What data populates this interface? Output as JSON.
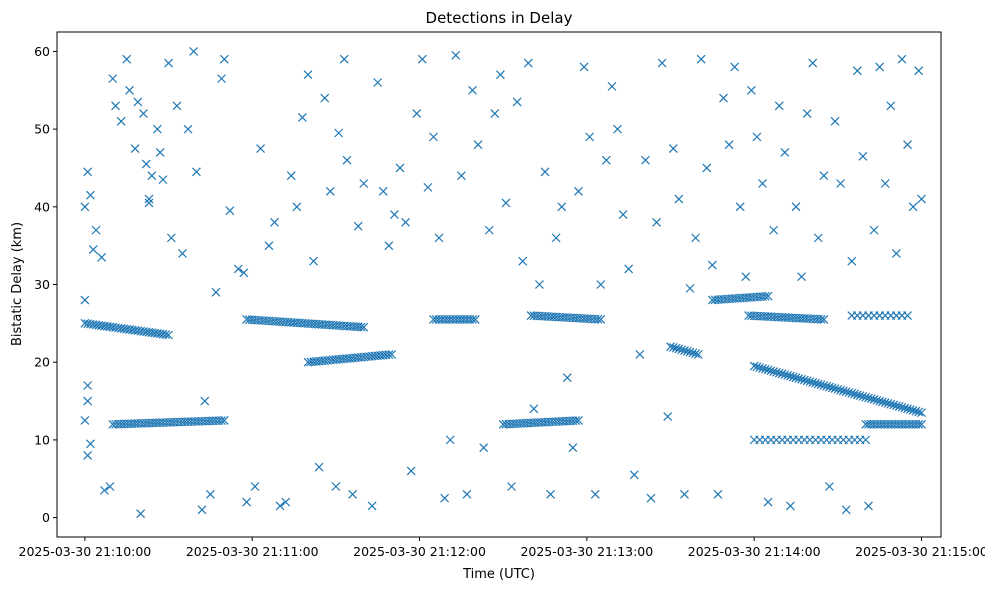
{
  "chart_data": {
    "type": "scatter",
    "title": "Detections in Delay",
    "xlabel": "Time (UTC)",
    "ylabel": "Bistatic Delay (km)",
    "xlim": [
      "2025-03-30 21:09:50",
      "2025-03-30 21:15:07"
    ],
    "ylim": [
      -2.5,
      62.5
    ],
    "x_ticks": [
      "2025-03-30 21:10:00",
      "2025-03-30 21:11:00",
      "2025-03-30 21:12:00",
      "2025-03-30 21:13:00",
      "2025-03-30 21:14:00",
      "2025-03-30 21:15:00"
    ],
    "y_ticks": [
      0,
      10,
      20,
      30,
      40,
      50,
      60
    ],
    "grid": false,
    "legend": "none",
    "marker": "x",
    "marker_color": "#1f77b4",
    "series_note_free": true,
    "series": [
      {
        "points": [
          [
            "2025-03-30 21:10:00",
            40
          ],
          [
            "2025-03-30 21:10:01",
            44.5
          ],
          [
            "2025-03-30 21:10:02",
            41.5
          ],
          [
            "2025-03-30 21:10:03",
            34.5
          ],
          [
            "2025-03-30 21:10:04",
            37
          ],
          [
            "2025-03-30 21:10:00",
            28
          ],
          [
            "2025-03-30 21:10:01",
            17
          ],
          [
            "2025-03-30 21:10:01",
            15
          ],
          [
            "2025-03-30 21:10:00",
            12.5
          ],
          [
            "2025-03-30 21:10:01",
            8
          ],
          [
            "2025-03-30 21:10:02",
            9.5
          ],
          [
            "2025-03-30 21:10:06",
            33.5
          ],
          [
            "2025-03-30 21:10:07",
            3.5
          ],
          [
            "2025-03-30 21:10:09",
            4
          ],
          [
            "2025-03-30 21:10:10",
            56.5
          ],
          [
            "2025-03-30 21:10:11",
            53
          ],
          [
            "2025-03-30 21:10:13",
            51
          ],
          [
            "2025-03-30 21:10:15",
            59
          ],
          [
            "2025-03-30 21:10:16",
            55
          ],
          [
            "2025-03-30 21:10:18",
            47.5
          ],
          [
            "2025-03-30 21:10:19",
            53.5
          ],
          [
            "2025-03-30 21:10:20",
            0.5
          ],
          [
            "2025-03-30 21:10:21",
            52
          ],
          [
            "2025-03-30 21:10:22",
            45.5
          ],
          [
            "2025-03-30 21:10:23",
            41
          ],
          [
            "2025-03-30 21:10:23",
            40.5
          ],
          [
            "2025-03-30 21:10:24",
            44
          ],
          [
            "2025-03-30 21:10:26",
            50
          ],
          [
            "2025-03-30 21:10:27",
            47
          ],
          [
            "2025-03-30 21:10:28",
            43.5
          ],
          [
            "2025-03-30 21:10:30",
            58.5
          ],
          [
            "2025-03-30 21:10:31",
            36
          ],
          [
            "2025-03-30 21:10:33",
            53
          ],
          [
            "2025-03-30 21:10:35",
            34
          ],
          [
            "2025-03-30 21:10:37",
            50
          ],
          [
            "2025-03-30 21:10:39",
            60
          ],
          [
            "2025-03-30 21:10:40",
            44.5
          ],
          [
            "2025-03-30 21:10:42",
            1
          ],
          [
            "2025-03-30 21:10:43",
            15
          ],
          [
            "2025-03-30 21:10:45",
            3
          ],
          [
            "2025-03-30 21:10:47",
            29
          ],
          [
            "2025-03-30 21:10:49",
            56.5
          ],
          [
            "2025-03-30 21:10:50",
            59
          ],
          [
            "2025-03-30 21:10:52",
            39.5
          ],
          [
            "2025-03-30 21:10:55",
            32
          ],
          [
            "2025-03-30 21:10:57",
            31.5
          ],
          [
            "2025-03-30 21:10:58",
            2
          ],
          [
            "2025-03-30 21:11:01",
            4
          ],
          [
            "2025-03-30 21:11:03",
            47.5
          ],
          [
            "2025-03-30 21:11:06",
            35
          ],
          [
            "2025-03-30 21:11:08",
            38
          ],
          [
            "2025-03-30 21:11:10",
            1.5
          ],
          [
            "2025-03-30 21:11:12",
            2
          ],
          [
            "2025-03-30 21:11:14",
            44
          ],
          [
            "2025-03-30 21:11:16",
            40
          ],
          [
            "2025-03-30 21:11:18",
            51.5
          ],
          [
            "2025-03-30 21:11:20",
            57
          ],
          [
            "2025-03-30 21:11:22",
            33
          ],
          [
            "2025-03-30 21:11:24",
            6.5
          ],
          [
            "2025-03-30 21:11:26",
            54
          ],
          [
            "2025-03-30 21:11:28",
            42
          ],
          [
            "2025-03-30 21:11:30",
            4
          ],
          [
            "2025-03-30 21:11:31",
            49.5
          ],
          [
            "2025-03-30 21:11:33",
            59
          ],
          [
            "2025-03-30 21:11:34",
            46
          ],
          [
            "2025-03-30 21:11:36",
            3
          ],
          [
            "2025-03-30 21:11:38",
            37.5
          ],
          [
            "2025-03-30 21:11:40",
            43
          ],
          [
            "2025-03-30 21:11:43",
            1.5
          ],
          [
            "2025-03-30 21:11:45",
            56
          ],
          [
            "2025-03-30 21:11:47",
            42
          ],
          [
            "2025-03-30 21:11:49",
            35
          ],
          [
            "2025-03-30 21:11:51",
            39
          ],
          [
            "2025-03-30 21:11:53",
            45
          ],
          [
            "2025-03-30 21:11:55",
            38
          ],
          [
            "2025-03-30 21:11:57",
            6
          ],
          [
            "2025-03-30 21:11:59",
            52
          ],
          [
            "2025-03-30 21:12:01",
            59
          ],
          [
            "2025-03-30 21:12:03",
            42.5
          ],
          [
            "2025-03-30 21:12:05",
            49
          ],
          [
            "2025-03-30 21:12:07",
            36
          ],
          [
            "2025-03-30 21:12:09",
            2.5
          ],
          [
            "2025-03-30 21:12:11",
            10
          ],
          [
            "2025-03-30 21:12:13",
            59.5
          ],
          [
            "2025-03-30 21:12:15",
            44
          ],
          [
            "2025-03-30 21:12:17",
            3
          ],
          [
            "2025-03-30 21:12:19",
            55
          ],
          [
            "2025-03-30 21:12:21",
            48
          ],
          [
            "2025-03-30 21:12:23",
            9
          ],
          [
            "2025-03-30 21:12:25",
            37
          ],
          [
            "2025-03-30 21:12:27",
            52
          ],
          [
            "2025-03-30 21:12:29",
            57
          ],
          [
            "2025-03-30 21:12:31",
            40.5
          ],
          [
            "2025-03-30 21:12:33",
            4
          ],
          [
            "2025-03-30 21:12:35",
            53.5
          ],
          [
            "2025-03-30 21:12:37",
            33
          ],
          [
            "2025-03-30 21:12:39",
            58.5
          ],
          [
            "2025-03-30 21:12:41",
            14
          ],
          [
            "2025-03-30 21:12:43",
            30
          ],
          [
            "2025-03-30 21:12:45",
            44.5
          ],
          [
            "2025-03-30 21:12:47",
            3
          ],
          [
            "2025-03-30 21:12:49",
            36
          ],
          [
            "2025-03-30 21:12:51",
            40
          ],
          [
            "2025-03-30 21:12:53",
            18
          ],
          [
            "2025-03-30 21:12:55",
            9
          ],
          [
            "2025-03-30 21:12:57",
            42
          ],
          [
            "2025-03-30 21:12:59",
            58
          ],
          [
            "2025-03-30 21:13:01",
            49
          ],
          [
            "2025-03-30 21:13:03",
            3
          ],
          [
            "2025-03-30 21:13:05",
            30
          ],
          [
            "2025-03-30 21:13:07",
            46
          ],
          [
            "2025-03-30 21:13:09",
            55.5
          ],
          [
            "2025-03-30 21:13:11",
            50
          ],
          [
            "2025-03-30 21:13:13",
            39
          ],
          [
            "2025-03-30 21:13:15",
            32
          ],
          [
            "2025-03-30 21:13:17",
            5.5
          ],
          [
            "2025-03-30 21:13:19",
            21
          ],
          [
            "2025-03-30 21:13:21",
            46
          ],
          [
            "2025-03-30 21:13:23",
            2.5
          ],
          [
            "2025-03-30 21:13:25",
            38
          ],
          [
            "2025-03-30 21:13:27",
            58.5
          ],
          [
            "2025-03-30 21:13:29",
            13
          ],
          [
            "2025-03-30 21:13:31",
            47.5
          ],
          [
            "2025-03-30 21:13:33",
            41
          ],
          [
            "2025-03-30 21:13:35",
            3
          ],
          [
            "2025-03-30 21:13:37",
            29.5
          ],
          [
            "2025-03-30 21:13:39",
            36
          ],
          [
            "2025-03-30 21:13:41",
            59
          ],
          [
            "2025-03-30 21:13:43",
            45
          ],
          [
            "2025-03-30 21:13:45",
            32.5
          ],
          [
            "2025-03-30 21:13:47",
            3
          ],
          [
            "2025-03-30 21:13:49",
            54
          ],
          [
            "2025-03-30 21:13:51",
            48
          ],
          [
            "2025-03-30 21:13:53",
            58
          ],
          [
            "2025-03-30 21:13:55",
            40
          ],
          [
            "2025-03-30 21:13:57",
            31
          ],
          [
            "2025-03-30 21:13:59",
            55
          ],
          [
            "2025-03-30 21:14:01",
            49
          ],
          [
            "2025-03-30 21:14:03",
            43
          ],
          [
            "2025-03-30 21:14:05",
            2
          ],
          [
            "2025-03-30 21:14:07",
            37
          ],
          [
            "2025-03-30 21:14:09",
            53
          ],
          [
            "2025-03-30 21:14:11",
            47
          ],
          [
            "2025-03-30 21:14:13",
            1.5
          ],
          [
            "2025-03-30 21:14:15",
            40
          ],
          [
            "2025-03-30 21:14:17",
            31
          ],
          [
            "2025-03-30 21:14:19",
            52
          ],
          [
            "2025-03-30 21:14:21",
            58.5
          ],
          [
            "2025-03-30 21:14:23",
            36
          ],
          [
            "2025-03-30 21:14:25",
            44
          ],
          [
            "2025-03-30 21:14:27",
            4
          ],
          [
            "2025-03-30 21:14:29",
            51
          ],
          [
            "2025-03-30 21:14:31",
            43
          ],
          [
            "2025-03-30 21:14:33",
            1
          ],
          [
            "2025-03-30 21:14:35",
            33
          ],
          [
            "2025-03-30 21:14:37",
            57.5
          ],
          [
            "2025-03-30 21:14:39",
            46.5
          ],
          [
            "2025-03-30 21:14:41",
            1.5
          ],
          [
            "2025-03-30 21:14:43",
            37
          ],
          [
            "2025-03-30 21:14:45",
            58
          ],
          [
            "2025-03-30 21:14:47",
            43
          ],
          [
            "2025-03-30 21:14:49",
            53
          ],
          [
            "2025-03-30 21:14:51",
            34
          ],
          [
            "2025-03-30 21:14:53",
            59
          ],
          [
            "2025-03-30 21:14:55",
            48
          ],
          [
            "2025-03-30 21:14:57",
            40
          ],
          [
            "2025-03-30 21:14:59",
            57.5
          ],
          [
            "2025-03-30 21:15:00",
            41
          ]
        ],
        "tracks": [
          {
            "start": [
              "2025-03-30 21:10:00",
              25
            ],
            "end": [
              "2025-03-30 21:10:30",
              23.5
            ],
            "step_s": 1
          },
          {
            "start": [
              "2025-03-30 21:10:10",
              12
            ],
            "end": [
              "2025-03-30 21:10:50",
              12.5
            ],
            "step_s": 1
          },
          {
            "start": [
              "2025-03-30 21:10:58",
              25.5
            ],
            "end": [
              "2025-03-30 21:11:40",
              24.5
            ],
            "step_s": 1
          },
          {
            "start": [
              "2025-03-30 21:11:20",
              20
            ],
            "end": [
              "2025-03-30 21:11:50",
              21
            ],
            "step_s": 1
          },
          {
            "start": [
              "2025-03-30 21:12:05",
              25.5
            ],
            "end": [
              "2025-03-30 21:12:20",
              25.5
            ],
            "step_s": 1
          },
          {
            "start": [
              "2025-03-30 21:12:30",
              12
            ],
            "end": [
              "2025-03-30 21:12:57",
              12.5
            ],
            "step_s": 1
          },
          {
            "start": [
              "2025-03-30 21:12:40",
              26
            ],
            "end": [
              "2025-03-30 21:13:05",
              25.5
            ],
            "step_s": 1
          },
          {
            "start": [
              "2025-03-30 21:13:30",
              22
            ],
            "end": [
              "2025-03-30 21:13:40",
              21
            ],
            "step_s": 1
          },
          {
            "start": [
              "2025-03-30 21:13:45",
              28
            ],
            "end": [
              "2025-03-30 21:14:05",
              28.5
            ],
            "step_s": 1
          },
          {
            "start": [
              "2025-03-30 21:13:58",
              26
            ],
            "end": [
              "2025-03-30 21:14:25",
              25.5
            ],
            "step_s": 1
          },
          {
            "start": [
              "2025-03-30 21:14:00",
              19.5
            ],
            "end": [
              "2025-03-30 21:15:00",
              13.5
            ],
            "step_s": 1
          },
          {
            "start": [
              "2025-03-30 21:14:00",
              10
            ],
            "end": [
              "2025-03-30 21:14:40",
              10
            ],
            "step_s": 2
          },
          {
            "start": [
              "2025-03-30 21:14:40",
              12
            ],
            "end": [
              "2025-03-30 21:15:00",
              12
            ],
            "step_s": 1
          },
          {
            "start": [
              "2025-03-30 21:14:35",
              26
            ],
            "end": [
              "2025-03-30 21:14:55",
              26
            ],
            "step_s": 2
          }
        ]
      }
    ]
  }
}
